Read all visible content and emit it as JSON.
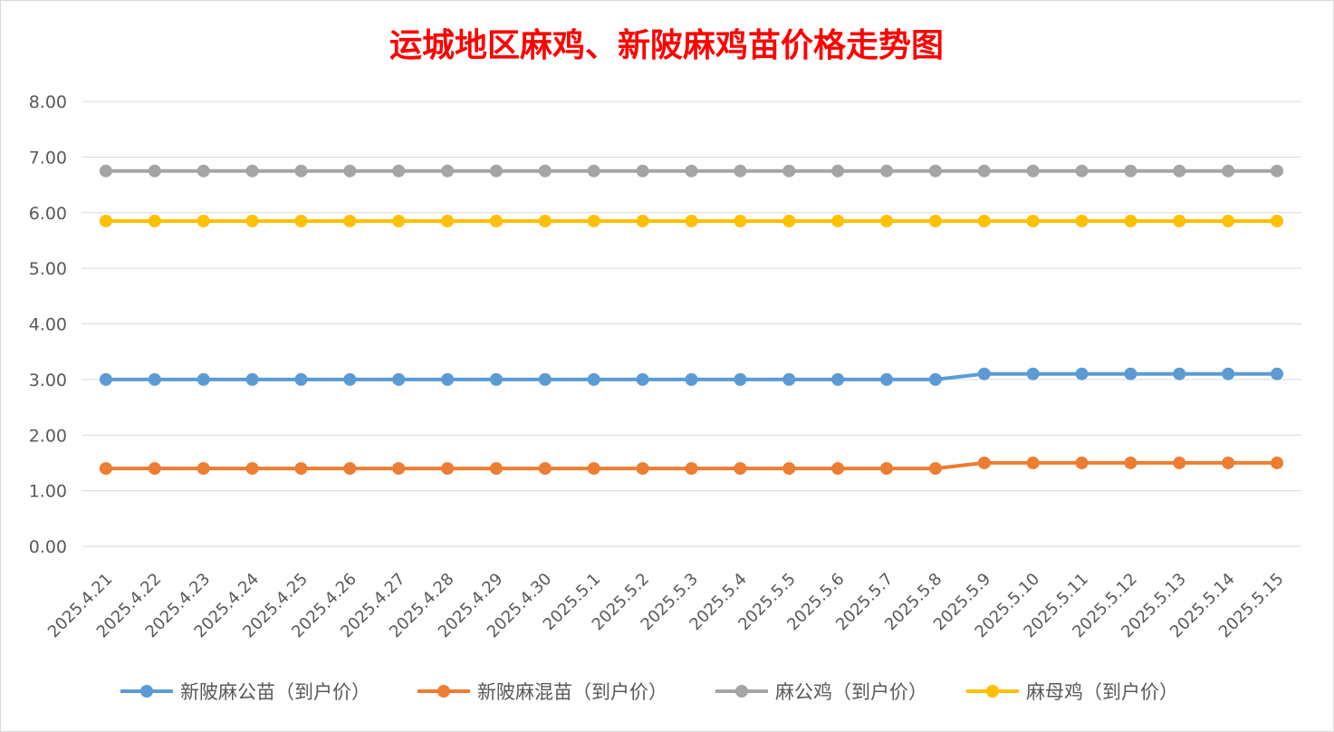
{
  "chart_data": {
    "type": "line",
    "title": "运城地区麻鸡、新陂麻鸡苗价格走势图",
    "xlabel": "",
    "ylabel": "",
    "ylim": [
      0,
      8
    ],
    "y_ticks": [
      "0.00",
      "1.00",
      "2.00",
      "3.00",
      "4.00",
      "5.00",
      "6.00",
      "7.00",
      "8.00"
    ],
    "grid": true,
    "legend_position": "bottom",
    "categories": [
      "2025.4.21",
      "2025.4.22",
      "2025.4.23",
      "2025.4.24",
      "2025.4.25",
      "2025.4.26",
      "2025.4.27",
      "2025.4.28",
      "2025.4.29",
      "2025.4.30",
      "2025.5.1",
      "2025.5.2",
      "2025.5.3",
      "2025.5.4",
      "2025.5.5",
      "2025.5.6",
      "2025.5.7",
      "2025.5.8",
      "2025.5.9",
      "2025.5.10",
      "2025.5.11",
      "2025.5.12",
      "2025.5.13",
      "2025.5.14",
      "2025.5.15"
    ],
    "series": [
      {
        "name": "新陂麻公苗（到户价）",
        "color": "#5b9bd5",
        "values": [
          3.0,
          3.0,
          3.0,
          3.0,
          3.0,
          3.0,
          3.0,
          3.0,
          3.0,
          3.0,
          3.0,
          3.0,
          3.0,
          3.0,
          3.0,
          3.0,
          3.0,
          3.0,
          3.1,
          3.1,
          3.1,
          3.1,
          3.1,
          3.1,
          3.1
        ]
      },
      {
        "name": "新陂麻混苗（到户价）",
        "color": "#ed7d31",
        "values": [
          1.4,
          1.4,
          1.4,
          1.4,
          1.4,
          1.4,
          1.4,
          1.4,
          1.4,
          1.4,
          1.4,
          1.4,
          1.4,
          1.4,
          1.4,
          1.4,
          1.4,
          1.4,
          1.5,
          1.5,
          1.5,
          1.5,
          1.5,
          1.5,
          1.5
        ]
      },
      {
        "name": "麻公鸡（到户价）",
        "color": "#a5a5a5",
        "values": [
          6.75,
          6.75,
          6.75,
          6.75,
          6.75,
          6.75,
          6.75,
          6.75,
          6.75,
          6.75,
          6.75,
          6.75,
          6.75,
          6.75,
          6.75,
          6.75,
          6.75,
          6.75,
          6.75,
          6.75,
          6.75,
          6.75,
          6.75,
          6.75,
          6.75
        ]
      },
      {
        "name": "麻母鸡（到户价）",
        "color": "#ffc000",
        "values": [
          5.85,
          5.85,
          5.85,
          5.85,
          5.85,
          5.85,
          5.85,
          5.85,
          5.85,
          5.85,
          5.85,
          5.85,
          5.85,
          5.85,
          5.85,
          5.85,
          5.85,
          5.85,
          5.85,
          5.85,
          5.85,
          5.85,
          5.85,
          5.85,
          5.85
        ]
      }
    ]
  }
}
